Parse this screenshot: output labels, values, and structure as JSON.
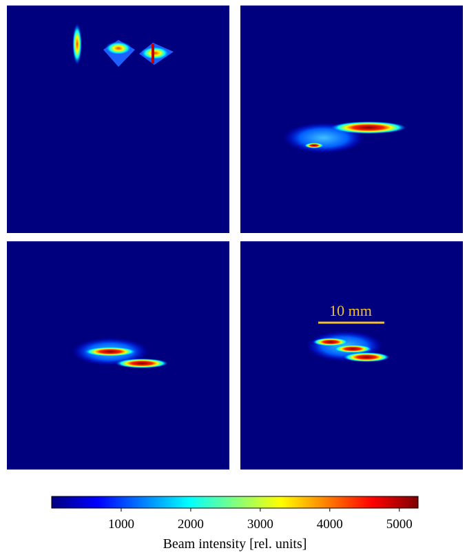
{
  "chart_data": {
    "type": "heatmap",
    "colormap": "jet",
    "scale_bar": {
      "label": "10 mm",
      "color": "#f2c12e"
    },
    "colorbar": {
      "label": "Beam intensity [rel. units]",
      "clim": [
        0,
        5270
      ],
      "ticks": [
        1000,
        2000,
        3000,
        4000,
        5000
      ]
    }
  }
}
